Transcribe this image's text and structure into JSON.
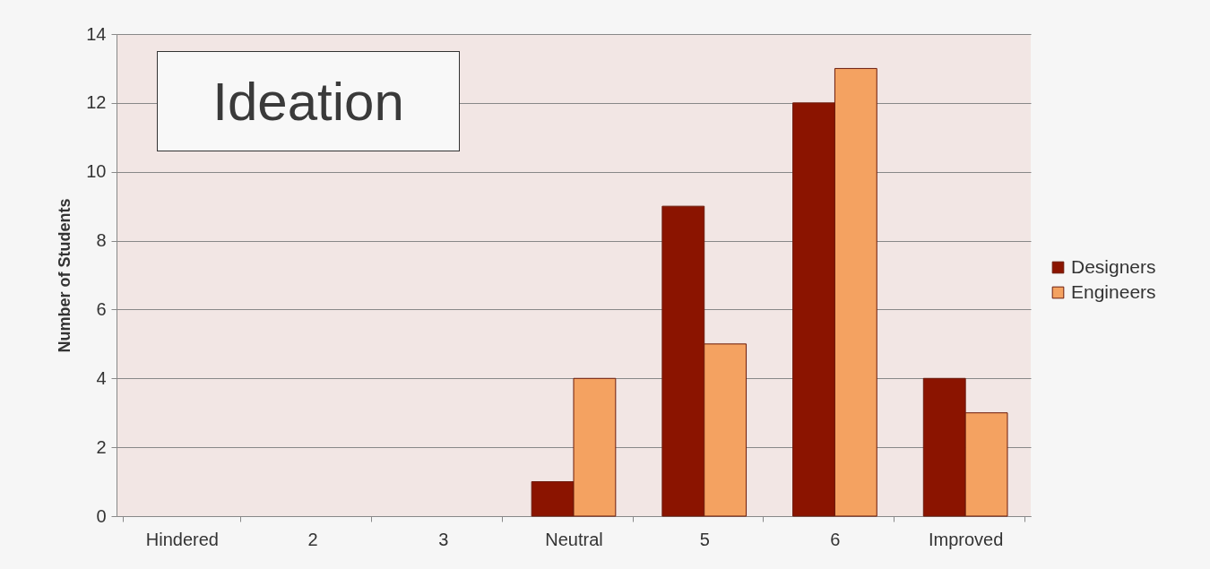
{
  "chart_data": {
    "type": "bar",
    "title": "Ideation",
    "ylabel": "Number of Students",
    "categories": [
      "Hindered",
      "2",
      "3",
      "Neutral",
      "5",
      "6",
      "Improved"
    ],
    "series": [
      {
        "name": "Designers",
        "color": "#8b1400",
        "values": [
          0,
          0,
          0,
          1,
          9,
          12,
          4
        ]
      },
      {
        "name": "Engineers",
        "color": "#f4a261",
        "values": [
          0,
          0,
          0,
          4,
          5,
          13,
          3
        ]
      }
    ],
    "ylim": [
      0,
      14
    ],
    "yticks": [
      0,
      2,
      4,
      6,
      8,
      10,
      12,
      14
    ],
    "grid": "y",
    "legend": "right"
  }
}
